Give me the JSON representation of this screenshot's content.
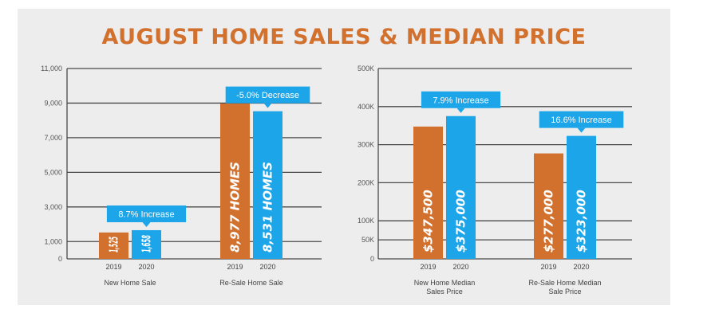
{
  "title": "AUGUST HOME SALES & MEDIAN PRICE",
  "colors": {
    "y2019": "#d2712e",
    "y2020": "#1ca5e8",
    "title": "#d2712e",
    "grid": "#4a4a4a",
    "background": "#ededee"
  },
  "chart_data": [
    {
      "type": "bar",
      "title": "",
      "ylim": [
        0,
        11000
      ],
      "ticks": [
        0,
        1000,
        3000,
        5000,
        7000,
        9000,
        11000
      ],
      "tick_labels": [
        "0",
        "1,000",
        "3,000",
        "5,000",
        "7,000",
        "9,000",
        "11,000"
      ],
      "grid": true,
      "categories": [
        "New Home Sale",
        "Re-Sale Home Sale"
      ],
      "groups": [
        {
          "category": "New Home Sale",
          "bars": [
            {
              "year": "2019",
              "value": 1525,
              "label": "1,525"
            },
            {
              "year": "2020",
              "value": 1658,
              "label": "1,658"
            }
          ],
          "callout": "8.7% Increase"
        },
        {
          "category": "Re-Sale Home Sale",
          "bars": [
            {
              "year": "2019",
              "value": 8977,
              "label": "8,977 HOMES"
            },
            {
              "year": "2020",
              "value": 8531,
              "label": "8,531 HOMES"
            }
          ],
          "callout": "-5.0% Decrease"
        }
      ]
    },
    {
      "type": "bar",
      "title": "",
      "ylim": [
        0,
        500000
      ],
      "ticks": [
        0,
        50000,
        100000,
        200000,
        300000,
        400000,
        500000
      ],
      "tick_labels": [
        "0",
        "50K",
        "100K",
        "200K",
        "300K",
        "400K",
        "500K"
      ],
      "grid": true,
      "categories": [
        "New Home Median Sales Price",
        "Re-Sale Home Median Sale Price"
      ],
      "groups": [
        {
          "category": "New Home Median Sales Price",
          "category_lines": [
            "New Home Median",
            "Sales Price"
          ],
          "bars": [
            {
              "year": "2019",
              "value": 347500,
              "label": "$347,500"
            },
            {
              "year": "2020",
              "value": 375000,
              "label": "$375,000"
            }
          ],
          "callout": "7.9% Increase"
        },
        {
          "category": "Re-Sale Home Median Sale Price",
          "category_lines": [
            "Re-Sale Home Median",
            "Sale Price"
          ],
          "bars": [
            {
              "year": "2019",
              "value": 277000,
              "label": "$277,000"
            },
            {
              "year": "2020",
              "value": 323000,
              "label": "$323,000"
            }
          ],
          "callout": "16.6% Increase"
        }
      ]
    }
  ]
}
